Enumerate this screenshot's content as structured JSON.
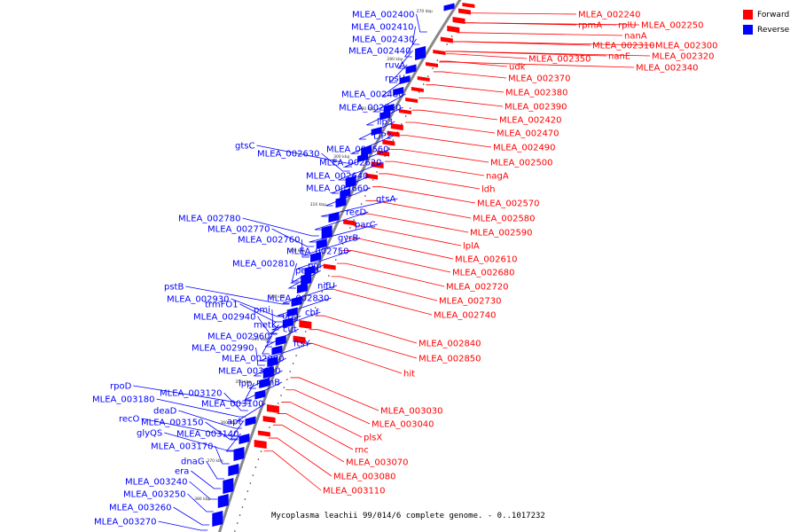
{
  "legend": [
    {
      "label": "Forward",
      "color": "#ff0000"
    },
    {
      "label": "Reverse",
      "color": "#0000ff"
    }
  ],
  "caption": "Mycoplasma leachii 99/014/6 complete genome. - 0..1017232",
  "ticks": [
    "270 kbp",
    "280 kbp",
    "290 kbp",
    "300 kbp",
    "310 kbp",
    "320 kbp",
    "330 kbp",
    "340 kbp",
    "350 kbp",
    "360 kbp",
    "370 kbp",
    "380 kbp"
  ],
  "forward_labels": [
    "MLEA_002240",
    "rpmA",
    "rplU",
    "MLEA_002250",
    "nanA",
    "MLEA_002310",
    "MLEA_002300",
    "nanE",
    "MLEA_002320",
    "MLEA_002350",
    "MLEA_002340",
    "udk",
    "MLEA_002370",
    "MLEA_002380",
    "MLEA_002390",
    "MLEA_002420",
    "MLEA_002470",
    "MLEA_002490",
    "MLEA_002500",
    "nagA",
    "ldh",
    "MLEA_002570",
    "MLEA_002580",
    "MLEA_002590",
    "lplA",
    "MLEA_002610",
    "MLEA_002680",
    "MLEA_002720",
    "MLEA_002730",
    "MLEA_002740",
    "MLEA_002840",
    "MLEA_002850",
    "hit",
    "MLEA_003030",
    "MLEA_003040",
    "plsX",
    "rnc",
    "MLEA_003070",
    "MLEA_003080",
    "MLEA_003110"
  ],
  "reverse_labels": [
    "MLEA_002400",
    "MLEA_002410",
    "MLEA_002430",
    "MLEA_002440",
    "ruvA",
    "rpsU",
    "MLEA_002480",
    "MLEA_002510",
    "lip3",
    "LIP2",
    "gtsC",
    "MLEA_002560",
    "MLEA_002630",
    "MLEA_002620",
    "MLEA_002640",
    "MLEA_002660",
    "gtsA",
    "recD",
    "parC",
    "gyrB",
    "MLEA_002780",
    "MLEA_002770",
    "MLEA_002760",
    "MLEA_002750",
    "MLEA_002810",
    "pgi",
    "pepO",
    "nifU",
    "pstB",
    "MLEA_002930",
    "MLEA_002830",
    "trmFO1",
    "pmi",
    "ung",
    "cbf",
    "MLEA_002940",
    "metK",
    "cut",
    "MLEA_002960",
    "ftsY",
    "MLEA_002980",
    "MLEA_002990",
    "MLEA_003000",
    "lpp",
    "rpmB",
    "rpoD",
    "MLEA_003120",
    "MLEA_003180",
    "deaD",
    "MLEA_003100",
    "recO",
    "MLEA_003150",
    "apt",
    "glyQS",
    "MLEA_003140",
    "MLEA_003170",
    "dnaG",
    "era",
    "MLEA_003240",
    "MLEA_003250",
    "MLEA_003260",
    "MLEA_003270"
  ]
}
